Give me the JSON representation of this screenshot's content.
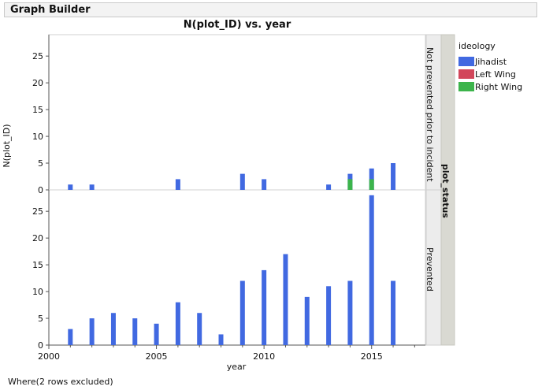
{
  "window": {
    "title": "Graph Builder"
  },
  "chart_data": {
    "type": "bar",
    "title": "N(plot_ID) vs. year",
    "xlabel": "year",
    "ylabel": "N(plot_ID)",
    "xlim": [
      2000,
      2017.5
    ],
    "ylim": [
      0,
      29
    ],
    "x_ticks": [
      2000,
      2005,
      2010,
      2015
    ],
    "y_ticks": [
      0,
      5,
      10,
      15,
      20,
      25
    ],
    "group_axis_label": "plot_status",
    "legend": {
      "title": "ideology",
      "entries": [
        {
          "name": "Jihadist",
          "color": "#4169e1"
        },
        {
          "name": "Left Wing",
          "color": "#d2465a"
        },
        {
          "name": "Right Wing",
          "color": "#3cb44b"
        }
      ]
    },
    "panels": [
      {
        "name": "Not prevented prior to incident",
        "bars": [
          {
            "year": 2001,
            "series": "Jihadist",
            "value": 1
          },
          {
            "year": 2002,
            "series": "Jihadist",
            "value": 1
          },
          {
            "year": 2006,
            "series": "Jihadist",
            "value": 2
          },
          {
            "year": 2009,
            "series": "Jihadist",
            "value": 3
          },
          {
            "year": 2010,
            "series": "Jihadist",
            "value": 2
          },
          {
            "year": 2013,
            "series": "Jihadist",
            "value": 1
          },
          {
            "year": 2014,
            "series": "Jihadist",
            "value": 3
          },
          {
            "year": 2014,
            "series": "Right Wing",
            "value": 2
          },
          {
            "year": 2015,
            "series": "Jihadist",
            "value": 4
          },
          {
            "year": 2015,
            "series": "Right Wing",
            "value": 2
          },
          {
            "year": 2016,
            "series": "Jihadist",
            "value": 5
          }
        ]
      },
      {
        "name": "Prevented",
        "bars": [
          {
            "year": 2001,
            "series": "Jihadist",
            "value": 3
          },
          {
            "year": 2002,
            "series": "Jihadist",
            "value": 5
          },
          {
            "year": 2003,
            "series": "Jihadist",
            "value": 6
          },
          {
            "year": 2004,
            "series": "Jihadist",
            "value": 5
          },
          {
            "year": 2005,
            "series": "Jihadist",
            "value": 4
          },
          {
            "year": 2006,
            "series": "Jihadist",
            "value": 8
          },
          {
            "year": 2007,
            "series": "Jihadist",
            "value": 6
          },
          {
            "year": 2008,
            "series": "Jihadist",
            "value": 2
          },
          {
            "year": 2009,
            "series": "Jihadist",
            "value": 12
          },
          {
            "year": 2010,
            "series": "Jihadist",
            "value": 14
          },
          {
            "year": 2011,
            "series": "Jihadist",
            "value": 17
          },
          {
            "year": 2012,
            "series": "Jihadist",
            "value": 9
          },
          {
            "year": 2013,
            "series": "Jihadist",
            "value": 11
          },
          {
            "year": 2014,
            "series": "Jihadist",
            "value": 12
          },
          {
            "year": 2015,
            "series": "Jihadist",
            "value": 28
          },
          {
            "year": 2016,
            "series": "Jihadist",
            "value": 12
          }
        ]
      }
    ]
  },
  "footnote": "Where(2 rows excluded)"
}
